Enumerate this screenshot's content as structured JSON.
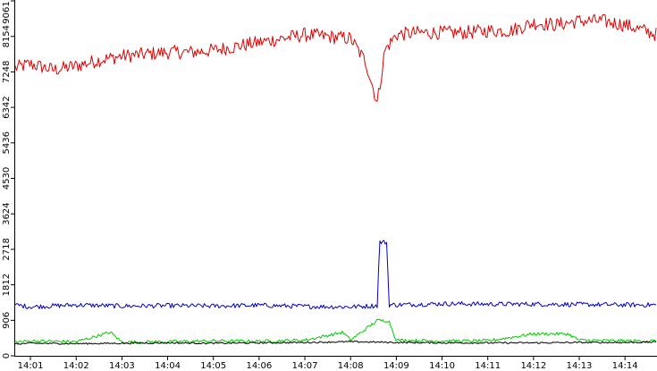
{
  "chart_data": {
    "type": "line",
    "title": "",
    "xlabel": "",
    "ylabel": "",
    "grid": false,
    "legend": "none",
    "ylim": [
      0,
      9061
    ],
    "xlim": [
      "14:00:40",
      "14:14:42"
    ],
    "y_ticks": [
      "0",
      "906",
      "1812",
      "2718",
      "3624",
      "4530",
      "5436",
      "6342",
      "7248",
      "8154",
      "9061"
    ],
    "x_ticks": [
      "14:01",
      "14:02",
      "14:03",
      "14:04",
      "14:05",
      "14:06",
      "14:07",
      "14:08",
      "14:09",
      "14:10",
      "14:11",
      "14:12",
      "14:13",
      "14:14"
    ],
    "series": [
      {
        "color": "#e00000",
        "x": [
          "14:00:40",
          "14:01:00",
          "14:01:30",
          "14:02:00",
          "14:02:30",
          "14:03:00",
          "14:03:30",
          "14:04:00",
          "14:04:30",
          "14:05:00",
          "14:05:30",
          "14:06:00",
          "14:06:30",
          "14:07:00",
          "14:07:30",
          "14:08:00",
          "14:08:20",
          "14:08:35",
          "14:08:45",
          "14:09:00",
          "14:09:30",
          "14:10:00",
          "14:10:30",
          "14:11:00",
          "14:11:30",
          "14:12:00",
          "14:12:30",
          "14:13:00",
          "14:13:30",
          "14:14:00",
          "14:14:42"
        ],
        "values": [
          7350,
          7450,
          7300,
          7400,
          7550,
          7650,
          7700,
          7750,
          7750,
          7800,
          7900,
          8000,
          8100,
          8200,
          8150,
          8100,
          7500,
          6450,
          7800,
          8200,
          8250,
          8250,
          8250,
          8300,
          8300,
          8500,
          8450,
          8550,
          8550,
          8450,
          8200
        ]
      },
      {
        "color": "#0000c0",
        "x": [
          "14:00:40",
          "14:01:00",
          "14:02:00",
          "14:03:00",
          "14:04:00",
          "14:05:00",
          "14:06:00",
          "14:07:00",
          "14:08:00",
          "14:08:35",
          "14:08:38",
          "14:08:48",
          "14:08:50",
          "14:09:00",
          "14:10:00",
          "14:11:00",
          "14:12:00",
          "14:13:00",
          "14:14:00",
          "14:14:42"
        ],
        "values": [
          1300,
          1250,
          1300,
          1270,
          1280,
          1270,
          1290,
          1260,
          1250,
          1280,
          2900,
          2900,
          1300,
          1300,
          1330,
          1320,
          1320,
          1310,
          1300,
          1300
        ]
      },
      {
        "color": "#00cc00",
        "x": [
          "14:00:40",
          "14:01:00",
          "14:02:00",
          "14:02:45",
          "14:03:00",
          "14:04:00",
          "14:05:00",
          "14:06:00",
          "14:07:00",
          "14:07:50",
          "14:08:00",
          "14:08:35",
          "14:08:50",
          "14:09:00",
          "14:10:00",
          "14:11:00",
          "14:12:00",
          "14:12:45",
          "14:13:00",
          "14:14:00",
          "14:14:42"
        ],
        "values": [
          350,
          380,
          360,
          600,
          350,
          360,
          380,
          370,
          400,
          600,
          400,
          900,
          900,
          400,
          380,
          380,
          560,
          560,
          400,
          380,
          380
        ]
      },
      {
        "color": "#000000",
        "x": [
          "14:00:40",
          "14:01:00",
          "14:02:00",
          "14:03:00",
          "14:04:00",
          "14:05:00",
          "14:06:00",
          "14:07:00",
          "14:08:00",
          "14:09:00",
          "14:10:00",
          "14:11:00",
          "14:12:00",
          "14:13:00",
          "14:14:00",
          "14:14:42"
        ],
        "values": [
          300,
          320,
          310,
          320,
          330,
          320,
          330,
          340,
          360,
          340,
          330,
          330,
          330,
          340,
          340,
          350
        ]
      }
    ]
  }
}
